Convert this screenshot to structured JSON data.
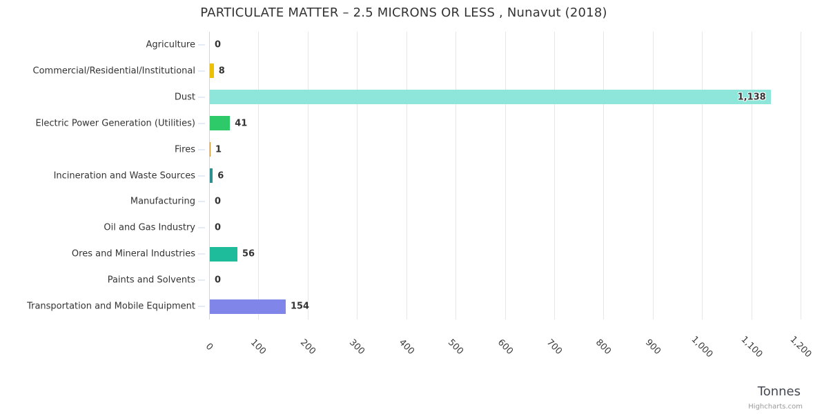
{
  "chart": {
    "credits": "Highcharts.com"
  },
  "chart_data": {
    "type": "bar",
    "orientation": "horizontal",
    "title": "PARTICULATE MATTER – 2.5 MICRONS OR LESS , Nunavut (2018)",
    "xlabel": "Tonnes",
    "ylabel": "",
    "categories": [
      "Agriculture",
      "Commercial/Residential/Institutional",
      "Dust",
      "Electric Power Generation (Utilities)",
      "Fires",
      "Incineration and Waste Sources",
      "Manufacturing",
      "Oil and Gas Industry",
      "Ores and Mineral Industries",
      "Paints and Solvents",
      "Transportation and Mobile Equipment"
    ],
    "values": [
      0,
      8,
      1138,
      41,
      1,
      6,
      0,
      0,
      56,
      0,
      154
    ],
    "value_labels": [
      "0",
      "8",
      "1,138",
      "41",
      "1",
      "6",
      "0",
      "0",
      "56",
      "0",
      "154"
    ],
    "bar_colors": [
      null,
      "#edc003",
      "#8ee5da",
      "#2ec968",
      "#cf8a2d",
      "#2b908f",
      null,
      null,
      "#1ebc9a",
      null,
      "#8085e9"
    ],
    "xlim": [
      0,
      1200
    ],
    "x_ticks": [
      0,
      100,
      200,
      300,
      400,
      500,
      600,
      700,
      800,
      900,
      1000,
      1100,
      1200
    ],
    "x_tick_labels": [
      "0",
      "100",
      "200",
      "300",
      "400",
      "500",
      "600",
      "700",
      "800",
      "900",
      "1,000",
      "1,100",
      "1,200"
    ],
    "grid": true,
    "legend": false,
    "axis_line_color": "#ccd6eb",
    "grid_color": "#e6e6e6",
    "label_color": "#333333"
  }
}
